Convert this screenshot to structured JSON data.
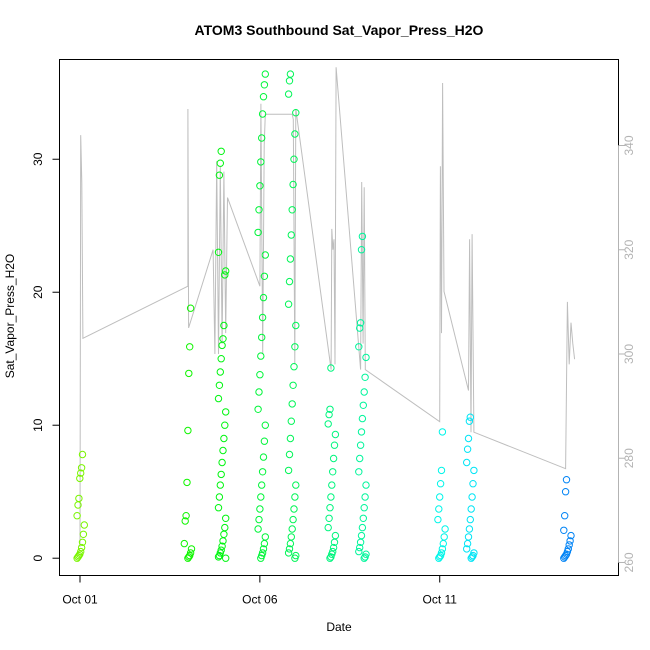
{
  "chart_data": {
    "type": "scatter",
    "title": "ATOM3 Southbound Sat_Vapor_Press_H2O",
    "xlabel": "Date",
    "ylabel": "Sat_Vapor_Press_H2O",
    "x_ticks": [
      "Oct 01",
      "Oct 06",
      "Oct 11"
    ],
    "x_range_days": [
      0.0,
      14.4
    ],
    "y_ticks": [
      0,
      10,
      20,
      30
    ],
    "ylim": [
      -1.3,
      37.5
    ],
    "y2_ticks": [
      260,
      280,
      300,
      320,
      340
    ],
    "y2lim": [
      257.5,
      356.5
    ],
    "series": [
      {
        "kind": "points",
        "description_color": "rainbow by time (yellow-green to blue)",
        "groups": [
          {
            "x_day": 0.02,
            "values": [
              0,
              0.1,
              0.2,
              0.3,
              0.5,
              0.8,
              1.2,
              1.8,
              2.5,
              3.2,
              4.0,
              4.5,
              6.0,
              6.4,
              6.8,
              7.8
            ]
          },
          {
            "x_day": 3.0,
            "values": [
              0,
              0.1,
              0.2,
              0.4,
              0.7,
              1.1,
              2.8,
              3.2,
              5.7,
              9.6,
              13.9,
              15.9,
              18.8
            ]
          },
          {
            "x_day": 3.95,
            "values": [
              0,
              0.1,
              0.2,
              0.4,
              0.6,
              0.9,
              1.3,
              1.8,
              2.3,
              3,
              3.8,
              4.6,
              5.5,
              6.3,
              7.2,
              8.1,
              9,
              10,
              11,
              12,
              13,
              14,
              15,
              16,
              16.5,
              17.5,
              21.3,
              21.6,
              23,
              28.8,
              29.7,
              30.6
            ]
          },
          {
            "x_day": 5.05,
            "values": [
              0,
              0.2,
              0.4,
              0.7,
              1.1,
              1.6,
              2.2,
              2.9,
              3.7,
              4.6,
              5.5,
              6.5,
              7.6,
              8.8,
              10,
              11.2,
              12.5,
              13.8,
              15.2,
              16.6,
              18.1,
              19.6,
              21.2,
              22.8,
              24.5,
              26.2,
              28,
              29.8,
              31.6,
              33.4,
              34.7,
              35.6,
              36.4
            ]
          },
          {
            "x_day": 5.9,
            "values": [
              0,
              0.2,
              0.4,
              0.7,
              1.1,
              1.6,
              2.2,
              2.9,
              3.7,
              4.6,
              5.5,
              6.6,
              7.8,
              9,
              10.3,
              11.6,
              13,
              14.4,
              15.9,
              17.5,
              19.1,
              20.8,
              22.5,
              24.3,
              26.2,
              28.1,
              30,
              31.9,
              33.5,
              34.9,
              35.9,
              36.4
            ]
          },
          {
            "x_day": 7.0,
            "values": [
              0,
              0.1,
              0.3,
              0.5,
              0.8,
              1.2,
              1.7,
              2.3,
              3,
              3.8,
              4.6,
              5.5,
              6.5,
              7.5,
              8.5,
              9.3,
              10.1,
              10.8,
              11.2,
              14.3
            ]
          },
          {
            "x_day": 7.85,
            "values": [
              0,
              0.1,
              0.3,
              0.5,
              0.8,
              1.2,
              1.7,
              2.3,
              3,
              3.8,
              4.6,
              5.5,
              6.5,
              7.5,
              8.5,
              9.5,
              10.5,
              11.5,
              12.5,
              13.6,
              15.1,
              15.9,
              17.3,
              17.7,
              23.2,
              24.2
            ]
          },
          {
            "x_day": 10.05,
            "values": [
              0,
              0.1,
              0.2,
              0.4,
              0.7,
              1.1,
              1.6,
              2.2,
              2.9,
              3.7,
              4.6,
              5.6,
              6.6,
              9.5
            ]
          },
          {
            "x_day": 10.85,
            "values": [
              0,
              0.1,
              0.2,
              0.4,
              0.7,
              1.1,
              1.6,
              2.2,
              2.9,
              3.7,
              4.6,
              5.6,
              6.6,
              7.2,
              8.2,
              9,
              10.3,
              10.6
            ]
          },
          {
            "x_day": 13.55,
            "values": [
              0,
              0.1,
              0.2,
              0.3,
              0.5,
              0.7,
              1,
              1.3,
              1.7,
              2.1,
              3.2,
              5,
              5.9
            ]
          }
        ]
      },
      {
        "kind": "line",
        "axis": "right",
        "color": "#bebebe",
        "path": [
          [
            0.0,
            263
          ],
          [
            0.02,
            342
          ],
          [
            0.05,
            333
          ],
          [
            0.08,
            303
          ],
          [
            3.0,
            313
          ],
          [
            3.0,
            347
          ],
          [
            3.02,
            305
          ],
          [
            3.7,
            320
          ],
          [
            3.75,
            300
          ],
          [
            3.8,
            337
          ],
          [
            3.85,
            300
          ],
          [
            3.9,
            336
          ],
          [
            3.95,
            302
          ],
          [
            4.0,
            335
          ],
          [
            4.05,
            304
          ],
          [
            4.1,
            330
          ],
          [
            5.0,
            313
          ],
          [
            5.03,
            348
          ],
          [
            5.08,
            300
          ],
          [
            5.12,
            340
          ],
          [
            5.15,
            346
          ],
          [
            5.9,
            346
          ],
          [
            5.93,
            345
          ],
          [
            5.97,
            298
          ],
          [
            6.0,
            347
          ],
          [
            6.98,
            297
          ],
          [
            7.0,
            324
          ],
          [
            7.03,
            320
          ],
          [
            7.06,
            322
          ],
          [
            7.09,
            298
          ],
          [
            7.12,
            355
          ],
          [
            7.8,
            297
          ],
          [
            7.83,
            333
          ],
          [
            7.87,
            302
          ],
          [
            7.9,
            332
          ],
          [
            7.93,
            297
          ],
          [
            10.0,
            287
          ],
          [
            10.02,
            336
          ],
          [
            10.05,
            304
          ],
          [
            10.08,
            352
          ],
          [
            10.12,
            312
          ],
          [
            10.8,
            293
          ],
          [
            10.83,
            322
          ],
          [
            10.87,
            285
          ],
          [
            10.9,
            323
          ],
          [
            10.95,
            285
          ],
          [
            13.5,
            278
          ],
          [
            13.55,
            310
          ],
          [
            13.6,
            298
          ],
          [
            13.65,
            306
          ],
          [
            13.7,
            302
          ],
          [
            13.75,
            299
          ]
        ]
      }
    ],
    "colors": {
      "line": "#bebebe",
      "axis_right": "#b3b3b3",
      "gradient_start": "#80ff00",
      "gradient_mid": "#00ff80",
      "gradient_cyan": "#00ffff",
      "gradient_end": "#0080ff"
    }
  }
}
